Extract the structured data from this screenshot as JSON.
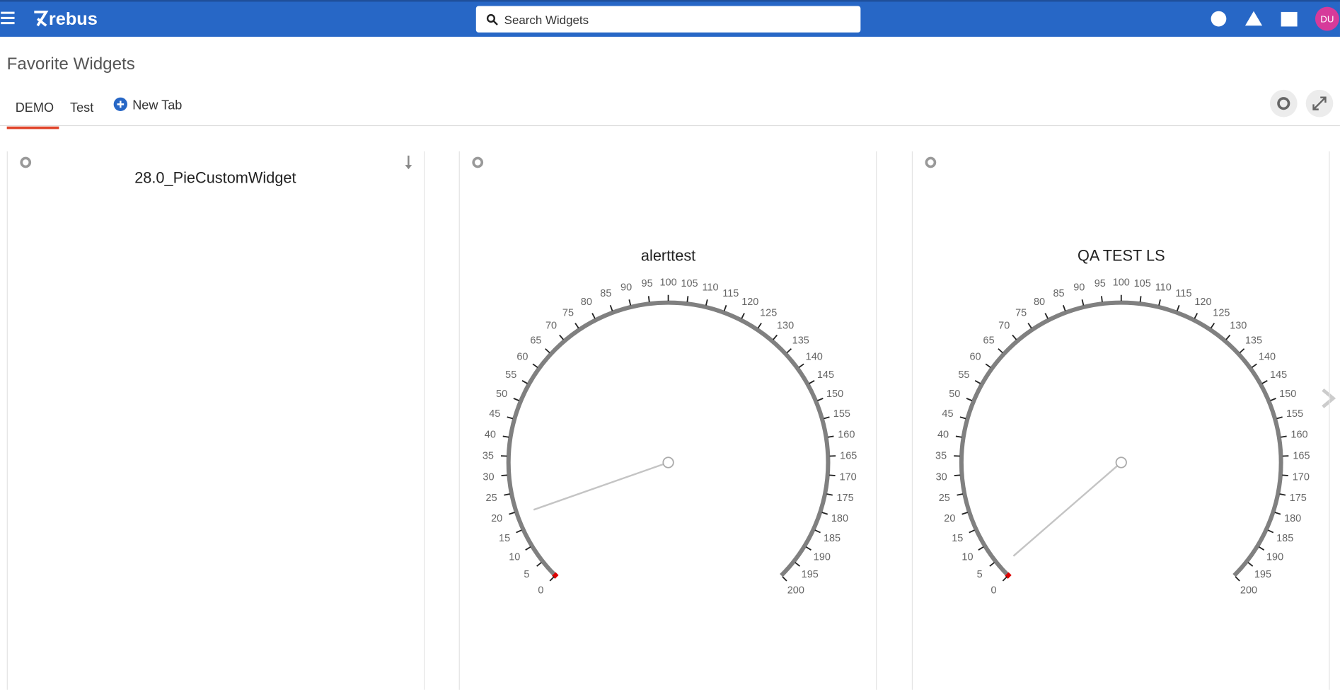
{
  "header": {
    "logo": "rebus",
    "search_placeholder": "Search Widgets",
    "avatar": "DU"
  },
  "page_title": "Favorite Widgets",
  "tabs": [
    "DEMO",
    "Test",
    "New Tab"
  ],
  "widgets": [
    {
      "title": "28.0_PieCustomWidget"
    },
    {
      "title": "alerttest",
      "type": "gauge",
      "lim": [
        0,
        200
      ],
      "ticks": [
        0,
        5,
        10,
        15,
        20,
        25,
        30,
        35,
        40,
        45,
        50,
        55,
        60,
        65,
        70,
        75,
        80,
        85,
        90,
        95,
        100,
        105,
        110,
        115,
        120,
        125,
        130,
        135,
        140,
        145,
        150,
        155,
        160,
        165,
        170,
        175,
        180,
        185,
        190,
        195,
        200
      ],
      "value": 19
    },
    {
      "title": "QA TEST LS",
      "type": "gauge",
      "lim": [
        0,
        200
      ],
      "ticks": [
        0,
        5,
        10,
        15,
        20,
        25,
        30,
        35,
        40,
        45,
        50,
        55,
        60,
        65,
        70,
        75,
        80,
        85,
        90,
        95,
        100,
        105,
        110,
        115,
        120,
        125,
        130,
        135,
        140,
        145,
        150,
        155,
        160,
        165,
        170,
        175,
        180,
        185,
        190,
        195,
        200
      ],
      "value": 3
    }
  ]
}
